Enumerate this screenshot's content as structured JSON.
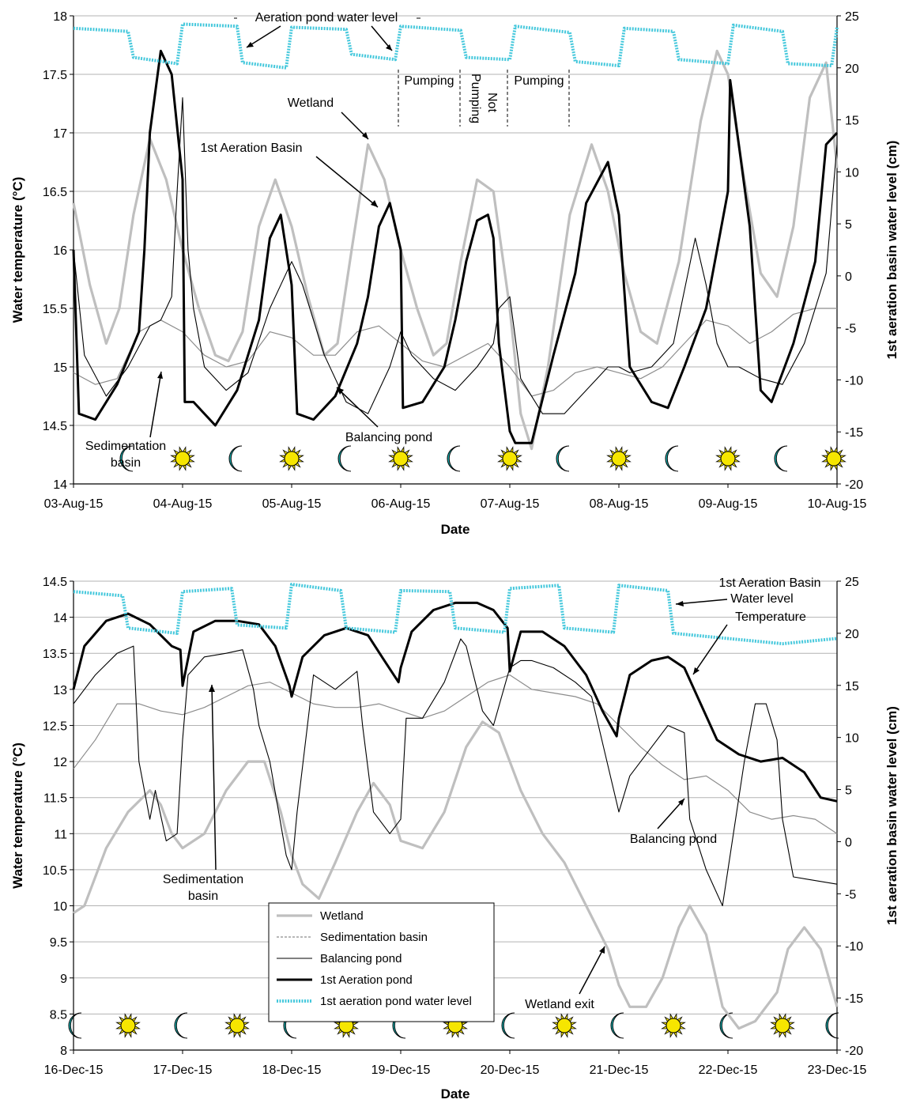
{
  "chart_data": [
    {
      "type": "line",
      "xlabel": "Date",
      "ylabel": "Water temperature (°C)",
      "y2label": "1st aeration basin water level (cm)",
      "x_ticks": [
        "03-Aug-15",
        "04-Aug-15",
        "05-Aug-15",
        "06-Aug-15",
        "07-Aug-15",
        "08-Aug-15",
        "09-Aug-15",
        "10-Aug-15"
      ],
      "ylim": [
        14,
        18
      ],
      "y_ticks": [
        "14",
        "14.5",
        "15",
        "15.5",
        "16",
        "16.5",
        "17",
        "17.5",
        "18"
      ],
      "y2lim": [
        -20,
        25
      ],
      "y2_ticks": [
        "-20",
        "-15",
        "-10",
        "-5",
        "0",
        "5",
        "10",
        "15",
        "20",
        "25"
      ],
      "grid": "horizontal",
      "colors": {
        "wetland": "#bfbfbf",
        "sedimentation": "#8c8c8c",
        "balancing": "#000000",
        "aeration": "#000000",
        "level": "#45c8dc"
      },
      "series": [
        {
          "key": "wetland",
          "x": [
            0,
            0.15,
            0.3,
            0.42,
            0.55,
            0.7,
            0.85,
            1.0,
            1.15,
            1.3,
            1.42,
            1.55,
            1.7,
            1.85,
            2.0,
            2.15,
            2.3,
            2.42,
            2.55,
            2.7,
            2.85,
            3.0,
            3.15,
            3.3,
            3.42,
            3.55,
            3.7,
            3.85,
            4.0,
            4.1,
            4.2,
            4.35,
            4.55,
            4.75,
            4.9,
            5.05,
            5.2,
            5.35,
            5.55,
            5.75,
            5.9,
            6.0,
            6.15,
            6.3,
            6.45,
            6.6,
            6.75,
            6.9,
            7.0
          ],
          "y": [
            16.4,
            15.7,
            15.2,
            15.5,
            16.3,
            16.95,
            16.6,
            16.0,
            15.5,
            15.1,
            15.05,
            15.3,
            16.2,
            16.6,
            16.2,
            15.6,
            15.1,
            15.2,
            16.0,
            16.9,
            16.6,
            16.0,
            15.5,
            15.1,
            15.2,
            15.9,
            16.6,
            16.5,
            15.5,
            14.6,
            14.3,
            15.0,
            16.3,
            16.9,
            16.5,
            15.8,
            15.3,
            15.2,
            15.9,
            17.1,
            17.7,
            17.5,
            16.6,
            15.8,
            15.6,
            16.2,
            17.3,
            17.6,
            16.7
          ]
        },
        {
          "key": "sedimentation",
          "x": [
            0,
            0.2,
            0.4,
            0.6,
            0.8,
            1.0,
            1.2,
            1.4,
            1.6,
            1.8,
            2.0,
            2.2,
            2.4,
            2.6,
            2.8,
            3.0,
            3.2,
            3.4,
            3.6,
            3.8,
            4.0,
            4.2,
            4.4,
            4.6,
            4.8,
            5.0,
            5.2,
            5.4,
            5.6,
            5.8,
            6.0,
            6.2,
            6.4,
            6.6,
            6.8,
            7.0
          ],
          "y": [
            14.95,
            14.85,
            14.9,
            15.3,
            15.4,
            15.3,
            15.1,
            15.0,
            15.05,
            15.3,
            15.25,
            15.1,
            15.1,
            15.3,
            15.35,
            15.2,
            15.05,
            15.0,
            15.1,
            15.2,
            15.0,
            14.75,
            14.8,
            14.95,
            15.0,
            14.95,
            14.9,
            15.0,
            15.2,
            15.4,
            15.35,
            15.2,
            15.3,
            15.45,
            15.5,
            15.5
          ]
        },
        {
          "key": "balancing",
          "x": [
            0,
            0.1,
            0.3,
            0.5,
            0.7,
            0.8,
            0.9,
            0.95,
            1.0,
            1.05,
            1.1,
            1.2,
            1.4,
            1.6,
            1.8,
            2.0,
            2.1,
            2.3,
            2.5,
            2.7,
            2.9,
            3.0,
            3.1,
            3.3,
            3.5,
            3.7,
            3.85,
            3.9,
            4.0,
            4.1,
            4.3,
            4.5,
            4.7,
            4.9,
            5.0,
            5.1,
            5.3,
            5.5,
            5.7,
            5.8,
            5.9,
            6.0,
            6.1,
            6.3,
            6.5,
            6.7,
            6.9,
            7.0
          ],
          "y": [
            16.0,
            15.1,
            14.75,
            15.0,
            15.35,
            15.4,
            15.6,
            16.5,
            17.3,
            16.0,
            15.5,
            15.0,
            14.8,
            14.95,
            15.5,
            15.9,
            15.7,
            15.1,
            14.7,
            14.6,
            15.0,
            15.3,
            15.1,
            14.9,
            14.8,
            15.0,
            15.2,
            15.5,
            15.6,
            14.9,
            14.6,
            14.6,
            14.8,
            15.0,
            15.0,
            14.95,
            15.0,
            15.2,
            16.1,
            15.7,
            15.2,
            15.0,
            15.0,
            14.9,
            14.85,
            15.2,
            15.8,
            16.9
          ]
        },
        {
          "key": "aeration",
          "x": [
            0,
            0.05,
            0.2,
            0.4,
            0.6,
            0.65,
            0.7,
            0.8,
            0.9,
            1.0,
            1.02,
            1.1,
            1.3,
            1.5,
            1.7,
            1.8,
            1.9,
            2.0,
            2.05,
            2.2,
            2.4,
            2.6,
            2.7,
            2.8,
            2.9,
            3.0,
            3.02,
            3.2,
            3.4,
            3.5,
            3.6,
            3.7,
            3.8,
            3.85,
            3.9,
            4.0,
            4.05,
            4.2,
            4.4,
            4.6,
            4.7,
            4.9,
            5.0,
            5.1,
            5.3,
            5.45,
            5.6,
            5.8,
            6.0,
            6.02,
            6.2,
            6.3,
            6.4,
            6.6,
            6.8,
            6.9,
            7.0
          ],
          "y": [
            16.0,
            14.6,
            14.55,
            14.85,
            15.3,
            16.0,
            17.0,
            17.7,
            17.5,
            16.6,
            14.7,
            14.7,
            14.5,
            14.8,
            15.4,
            16.1,
            16.3,
            15.7,
            14.6,
            14.55,
            14.75,
            15.2,
            15.6,
            16.2,
            16.4,
            16.0,
            14.65,
            14.7,
            15.0,
            15.4,
            15.9,
            16.25,
            16.3,
            16.1,
            15.2,
            14.45,
            14.35,
            14.35,
            15.1,
            15.8,
            16.4,
            16.75,
            16.3,
            15.0,
            14.7,
            14.65,
            15.0,
            15.5,
            16.5,
            17.45,
            16.2,
            14.8,
            14.7,
            15.2,
            15.9,
            16.9,
            17.0
          ]
        },
        {
          "key": "level",
          "x": [
            0,
            0.5,
            0.55,
            0.95,
            1.0,
            1.5,
            1.55,
            1.95,
            2.0,
            2.5,
            2.55,
            2.95,
            3.0,
            3.55,
            3.6,
            4.0,
            4.05,
            4.55,
            4.6,
            5.0,
            5.05,
            5.5,
            5.55,
            6.0,
            6.05,
            6.5,
            6.55,
            6.95,
            7.0
          ],
          "y": [
            23.8,
            23.5,
            21.0,
            20.4,
            24.2,
            24.0,
            20.5,
            20.0,
            23.9,
            23.7,
            21.3,
            20.8,
            24.0,
            23.6,
            21.0,
            20.8,
            24.0,
            23.4,
            20.6,
            20.2,
            23.8,
            23.5,
            20.8,
            20.4,
            24.1,
            23.5,
            20.4,
            20.2,
            23.9
          ],
          "axis": "right"
        }
      ],
      "annotations": [
        "Aeration pond water level",
        "Pumping",
        "Not Pumping",
        "Pumping",
        "Wetland",
        "1st Aeration Basin",
        "Sedimentation basin",
        "Balancing pond"
      ]
    },
    {
      "type": "line",
      "xlabel": "Date",
      "ylabel": "Water temperature (°C)",
      "y2label": "1st aeration basin water level (cm)",
      "x_ticks": [
        "16-Dec-15",
        "17-Dec-15",
        "18-Dec-15",
        "19-Dec-15",
        "20-Dec-15",
        "21-Dec-15",
        "22-Dec-15",
        "23-Dec-15"
      ],
      "ylim": [
        8,
        14.5
      ],
      "y_ticks": [
        "8",
        "8.5",
        "9",
        "9.5",
        "10",
        "10.5",
        "11",
        "11.5",
        "12",
        "12.5",
        "13",
        "13.5",
        "14",
        "14.5"
      ],
      "y2lim": [
        -20,
        25
      ],
      "y2_ticks": [
        "-20",
        "-15",
        "-10",
        "-5",
        "0",
        "5",
        "10",
        "15",
        "20",
        "25"
      ],
      "grid": "horizontal",
      "series": [
        {
          "key": "wetland",
          "name": "Wetland",
          "x": [
            0,
            0.1,
            0.3,
            0.5,
            0.7,
            0.8,
            0.9,
            1.0,
            1.2,
            1.4,
            1.6,
            1.75,
            1.9,
            2.0,
            2.1,
            2.25,
            2.4,
            2.6,
            2.75,
            2.9,
            3.0,
            3.2,
            3.4,
            3.6,
            3.75,
            3.9,
            4.1,
            4.3,
            4.5,
            4.7,
            4.9,
            5.0,
            5.1,
            5.25,
            5.4,
            5.55,
            5.65,
            5.8,
            5.95,
            6.1,
            6.25,
            6.45,
            6.55,
            6.7,
            6.85,
            7.0
          ],
          "y": [
            9.9,
            10.0,
            10.8,
            11.3,
            11.6,
            11.4,
            11.0,
            10.8,
            11.0,
            11.6,
            12.0,
            12.0,
            11.3,
            10.7,
            10.3,
            10.1,
            10.6,
            11.3,
            11.7,
            11.4,
            10.9,
            10.8,
            11.3,
            12.2,
            12.55,
            12.4,
            11.6,
            11.0,
            10.6,
            10.0,
            9.4,
            8.9,
            8.6,
            8.6,
            9.0,
            9.7,
            10.0,
            9.6,
            8.6,
            8.3,
            8.4,
            8.8,
            9.4,
            9.7,
            9.4,
            8.6
          ]
        },
        {
          "key": "sedimentation",
          "name": "Sedimentation basin",
          "x": [
            0,
            0.2,
            0.4,
            0.6,
            0.8,
            1.0,
            1.2,
            1.4,
            1.6,
            1.8,
            2.0,
            2.2,
            2.4,
            2.6,
            2.8,
            3.0,
            3.2,
            3.4,
            3.6,
            3.8,
            4.0,
            4.2,
            4.4,
            4.6,
            4.8,
            5.0,
            5.2,
            5.4,
            5.6,
            5.8,
            6.0,
            6.2,
            6.4,
            6.6,
            6.8,
            7.0
          ],
          "y": [
            11.9,
            12.3,
            12.8,
            12.8,
            12.7,
            12.65,
            12.75,
            12.9,
            13.05,
            13.1,
            12.95,
            12.8,
            12.75,
            12.75,
            12.8,
            12.7,
            12.6,
            12.7,
            12.9,
            13.1,
            13.2,
            13.0,
            12.95,
            12.9,
            12.8,
            12.5,
            12.2,
            11.95,
            11.75,
            11.8,
            11.6,
            11.3,
            11.2,
            11.25,
            11.2,
            11.0
          ]
        },
        {
          "key": "balancing",
          "name": "Balancing pond",
          "x": [
            0,
            0.2,
            0.4,
            0.55,
            0.6,
            0.7,
            0.75,
            0.85,
            0.95,
            1.0,
            1.05,
            1.2,
            1.4,
            1.55,
            1.65,
            1.7,
            1.8,
            1.95,
            2.0,
            2.05,
            2.2,
            2.4,
            2.6,
            2.65,
            2.75,
            2.9,
            3.0,
            3.05,
            3.2,
            3.4,
            3.55,
            3.6,
            3.75,
            3.85,
            4.0,
            4.1,
            4.2,
            4.4,
            4.6,
            4.75,
            5.0,
            5.1,
            5.3,
            5.45,
            5.6,
            5.65,
            5.8,
            5.95,
            6.1,
            6.15,
            6.25,
            6.35,
            6.45,
            6.5,
            6.6,
            7.0
          ],
          "y": [
            12.8,
            13.2,
            13.5,
            13.6,
            12.0,
            11.2,
            11.6,
            10.9,
            11.0,
            12.3,
            13.2,
            13.45,
            13.5,
            13.55,
            13.0,
            12.5,
            12.0,
            10.7,
            10.5,
            11.3,
            13.2,
            13.0,
            13.25,
            12.5,
            11.3,
            11.0,
            11.2,
            12.6,
            12.6,
            13.1,
            13.7,
            13.6,
            12.7,
            12.5,
            13.3,
            13.4,
            13.4,
            13.3,
            13.1,
            12.9,
            11.3,
            11.8,
            12.2,
            12.5,
            12.4,
            11.2,
            10.5,
            10.0,
            11.5,
            12.0,
            12.8,
            12.8,
            12.3,
            11.2,
            10.4,
            10.3
          ]
        },
        {
          "key": "aeration",
          "name": "1st Aeration pond",
          "x": [
            0,
            0.1,
            0.3,
            0.5,
            0.7,
            0.9,
            0.98,
            1.0,
            1.1,
            1.3,
            1.5,
            1.7,
            1.85,
            1.98,
            2.0,
            2.1,
            2.3,
            2.5,
            2.7,
            2.85,
            2.98,
            3.0,
            3.1,
            3.3,
            3.5,
            3.7,
            3.85,
            3.98,
            4.0,
            4.1,
            4.3,
            4.5,
            4.7,
            4.85,
            4.98,
            5.0,
            5.1,
            5.3,
            5.45,
            5.6,
            5.75,
            5.9,
            6.1,
            6.3,
            6.5,
            6.7,
            6.85,
            7.0
          ],
          "y": [
            13.0,
            13.6,
            13.95,
            14.05,
            13.9,
            13.6,
            13.55,
            13.05,
            13.8,
            13.95,
            13.95,
            13.9,
            13.6,
            13.05,
            12.9,
            13.45,
            13.75,
            13.85,
            13.75,
            13.4,
            13.1,
            13.3,
            13.8,
            14.1,
            14.2,
            14.2,
            14.1,
            13.85,
            13.25,
            13.8,
            13.8,
            13.6,
            13.2,
            12.7,
            12.35,
            12.6,
            13.2,
            13.4,
            13.45,
            13.3,
            12.8,
            12.3,
            12.1,
            12.0,
            12.05,
            11.85,
            11.5,
            11.45
          ]
        },
        {
          "key": "level",
          "name": "1st aeration pond water level",
          "x": [
            0,
            0.45,
            0.5,
            0.95,
            1.0,
            1.45,
            1.5,
            1.95,
            2.0,
            2.45,
            2.5,
            2.95,
            3.0,
            3.45,
            3.5,
            3.95,
            4.0,
            4.45,
            4.5,
            4.95,
            5.0,
            5.45,
            5.5,
            6.0,
            6.5,
            7.0
          ],
          "y": [
            24.0,
            23.6,
            20.5,
            20.0,
            24.0,
            24.3,
            20.8,
            20.5,
            24.7,
            24.1,
            20.5,
            20.1,
            24.1,
            24.0,
            20.5,
            20.1,
            24.3,
            24.6,
            20.5,
            20.1,
            24.6,
            24.1,
            20.0,
            19.5,
            19.0,
            19.5
          ],
          "axis": "right"
        }
      ],
      "annotations": [
        "1st Aeration Basin",
        "Water level",
        "Temperature",
        "Sedimentation basin",
        "Balancing pond",
        "Wetland exit"
      ],
      "legend": "bottom-center"
    }
  ]
}
